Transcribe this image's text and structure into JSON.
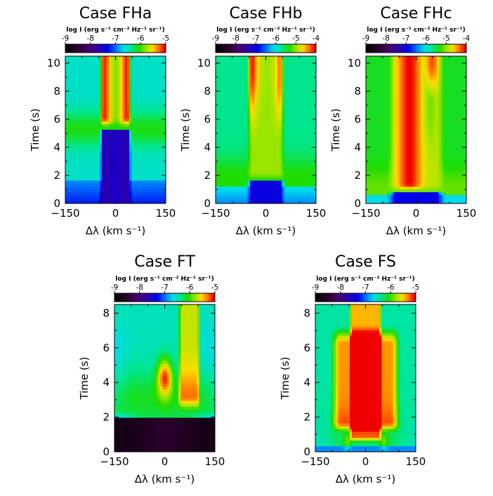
{
  "chart_data": [
    {
      "type": "heatmap",
      "title": "Case FHa",
      "colorbar_label": "log I (erg s⁻¹ cm⁻² Hz⁻¹ sr⁻¹)",
      "colorbar_ticks": [
        "-9",
        "-8",
        "-7",
        "-6",
        "-5"
      ],
      "colorbar_range": [
        -9,
        -5
      ],
      "xlabel": "Δλ (km s⁻¹)",
      "ylabel": "Time (s)",
      "xlim": [
        -150,
        150
      ],
      "ylim": [
        0,
        10.5
      ],
      "xticks": [
        "−150",
        "0",
        "150"
      ],
      "yticks": [
        "0",
        "2",
        "4",
        "6",
        "8",
        "10"
      ],
      "colormap": "rainbow",
      "features": {
        "transition_time": 5.3,
        "blob_half_width": 42,
        "peak_offsets": [
          -38,
          38
        ],
        "early_state": "dark core, blue wings"
      }
    },
    {
      "type": "heatmap",
      "title": "Case FHb",
      "colorbar_label": "log I (erg s⁻¹ cm⁻² Hz⁻¹ sr⁻¹)",
      "colorbar_ticks": [
        "-9",
        "-8",
        "-7",
        "-6",
        "-5",
        "-4"
      ],
      "colorbar_range": [
        -9,
        -4
      ],
      "xlabel": "Δλ (km s⁻¹)",
      "ylabel": "Time (s)",
      "xlim": [
        -150,
        150
      ],
      "ylim": [
        0,
        10.5
      ],
      "xticks": [
        "−150",
        "0",
        "150"
      ],
      "yticks": [
        "0",
        "2",
        "4",
        "6",
        "8",
        "10"
      ],
      "colormap": "rainbow",
      "features": {
        "transition_time": 1.6,
        "blob_half_width": 50,
        "peak_offsets": [
          -45,
          45
        ]
      }
    },
    {
      "type": "heatmap",
      "title": "Case FHc",
      "colorbar_label": "log I (erg s⁻¹ cm⁻² Hz⁻¹ sr⁻¹)",
      "colorbar_ticks": [
        "-9",
        "-8",
        "-7",
        "-6",
        "-5",
        "-4"
      ],
      "colorbar_range": [
        -9,
        -4
      ],
      "xlabel": "Δλ (km s⁻¹)",
      "ylabel": "Time (s)",
      "xlim": [
        -150,
        150
      ],
      "ylim": [
        0,
        10.5
      ],
      "xticks": [
        "−150",
        "0",
        "150"
      ],
      "yticks": [
        "0",
        "2",
        "4",
        "6",
        "8",
        "10"
      ],
      "colormap": "rainbow",
      "features": {
        "transition_time": 0.8,
        "blob_half_width": 80,
        "peak_offsets": [
          -20,
          45
        ]
      }
    },
    {
      "type": "heatmap",
      "title": "Case FT",
      "colorbar_label": "log I (erg s⁻¹ cm⁻² Hz⁻¹ sr⁻¹)",
      "colorbar_ticks": [
        "-9",
        "-8",
        "-7",
        "-6",
        "-5"
      ],
      "colorbar_range": [
        -9,
        -5
      ],
      "xlabel": "Δλ (km s⁻¹)",
      "ylabel": "Time (s)",
      "xlim": [
        -150,
        150
      ],
      "ylim": [
        0,
        8.5
      ],
      "xticks": [
        "−150",
        "0",
        "150"
      ],
      "yticks": [
        "0",
        "2",
        "4",
        "6",
        "8"
      ],
      "colormap": "rainbow",
      "features": {
        "transition_time": 1.9,
        "blob_center": [
          0,
          4.3
        ],
        "stripe_range": [
          40,
          105
        ],
        "early_state": "black"
      }
    },
    {
      "type": "heatmap",
      "title": "Case FS",
      "colorbar_label": "log I (erg s⁻¹ cm⁻² Hz⁻¹ sr⁻¹)",
      "colorbar_ticks": [
        "-9",
        "-8",
        "-7",
        "-6",
        "-5"
      ],
      "colorbar_range": [
        -9,
        -5
      ],
      "xlabel": "Δλ (km s⁻¹)",
      "ylabel": "Time (s)",
      "xlim": [
        -150,
        150
      ],
      "ylim": [
        0,
        8.5
      ],
      "xticks": [
        "−150",
        "0",
        "150"
      ],
      "yticks": [
        "0",
        "2",
        "4",
        "6",
        "8"
      ],
      "colormap": "rainbow",
      "features": {
        "transition_time": 0.5,
        "core_half_width": 45,
        "red_region_times": [
          1.3,
          6.8
        ]
      }
    }
  ]
}
